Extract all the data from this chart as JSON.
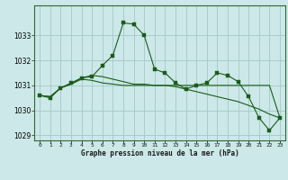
{
  "title": "Graphe pression niveau de la mer (hPa)",
  "bg_color": "#cce8e8",
  "grid_color": "#aacccc",
  "line_color": "#1a5c1a",
  "x_labels": [
    "0",
    "1",
    "2",
    "3",
    "4",
    "5",
    "6",
    "7",
    "8",
    "9",
    "10",
    "11",
    "12",
    "13",
    "14",
    "15",
    "16",
    "17",
    "18",
    "19",
    "20",
    "21",
    "22",
    "23"
  ],
  "series1": [
    1030.6,
    1030.5,
    1030.9,
    1031.1,
    1031.3,
    1031.35,
    1031.8,
    1032.2,
    1033.5,
    1033.45,
    1033.0,
    1031.65,
    1031.5,
    1031.1,
    1030.85,
    1031.0,
    1031.1,
    1031.5,
    1031.4,
    1031.15,
    1030.55,
    1029.7,
    1029.2,
    1029.7
  ],
  "series2": [
    1030.6,
    1030.55,
    1030.9,
    1031.05,
    1031.25,
    1031.2,
    1031.1,
    1031.05,
    1031.0,
    1031.0,
    1031.0,
    1031.0,
    1031.0,
    1030.95,
    1030.85,
    1030.75,
    1030.65,
    1030.55,
    1030.45,
    1030.35,
    1030.2,
    1030.05,
    1029.85,
    1029.7
  ],
  "series3": [
    1030.6,
    1030.55,
    1030.9,
    1031.05,
    1031.3,
    1031.4,
    1031.35,
    1031.25,
    1031.15,
    1031.05,
    1031.05,
    1031.0,
    1031.0,
    1031.0,
    1031.0,
    1031.0,
    1031.0,
    1031.0,
    1031.0,
    1031.0,
    1031.0,
    1031.0,
    1031.0,
    1029.7
  ],
  "ylim": [
    1028.8,
    1034.2
  ],
  "yticks": [
    1029,
    1030,
    1031,
    1032,
    1033
  ],
  "xlim": [
    -0.5,
    23.5
  ]
}
